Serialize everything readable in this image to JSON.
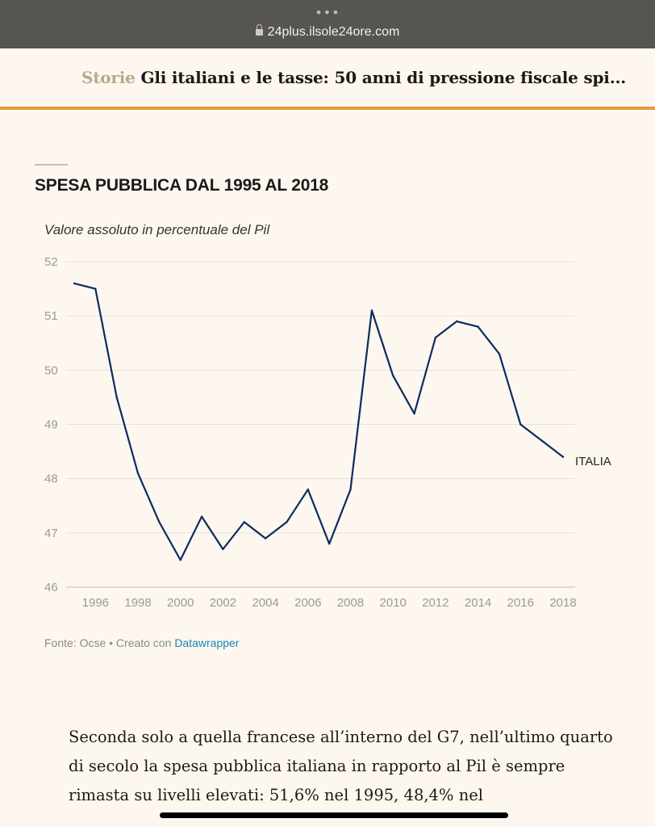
{
  "browser": {
    "dots": "•••",
    "url": "24plus.ilsole24ore.com"
  },
  "article_header": {
    "kicker": "Storie",
    "title": "Gli italiani e le tasse: 50 anni di pressione fiscale spi..."
  },
  "chart_data": {
    "type": "line",
    "title": "SPESA PUBBLICA DAL 1995 AL 2018",
    "subtitle": "Valore assoluto in percentuale del Pil",
    "x": [
      1995,
      1996,
      1997,
      1998,
      1999,
      2000,
      2001,
      2002,
      2003,
      2004,
      2005,
      2006,
      2007,
      2008,
      2009,
      2010,
      2011,
      2012,
      2013,
      2014,
      2015,
      2016,
      2017,
      2018
    ],
    "series": [
      {
        "name": "ITALIA",
        "color": "#0c2b5e",
        "values": [
          51.6,
          51.5,
          49.5,
          48.1,
          47.2,
          46.5,
          47.3,
          46.7,
          47.2,
          46.9,
          47.2,
          47.8,
          46.8,
          47.8,
          51.1,
          49.9,
          49.2,
          50.6,
          50.9,
          50.8,
          50.3,
          49.0,
          48.7,
          48.4
        ]
      }
    ],
    "x_ticks": [
      1996,
      1998,
      2000,
      2002,
      2004,
      2006,
      2008,
      2010,
      2012,
      2014,
      2016,
      2018
    ],
    "y_ticks": [
      46,
      47,
      48,
      49,
      50,
      51,
      52
    ],
    "xlim": [
      1995,
      2018
    ],
    "ylim": [
      46,
      52
    ],
    "grid": true,
    "legend": "direct label at line end"
  },
  "source": {
    "prefix": "Fonte: Ocse • Creato con ",
    "link": "Datawrapper"
  },
  "body_text": "Seconda solo a quella francese all’interno del G7, nell’ultimo quarto di secolo la spesa pubblica italiana in rapporto al Pil è sempre rimasta su livelli elevati: 51,6% nel 1995, 48,4% nel"
}
